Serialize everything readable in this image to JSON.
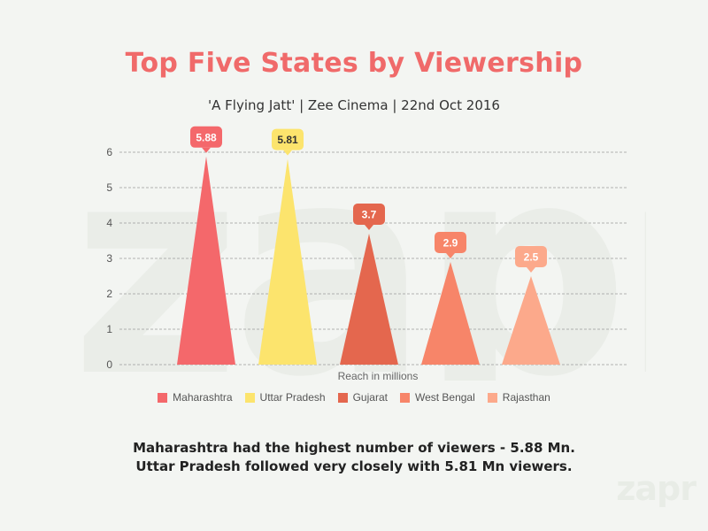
{
  "title": "Top Five States by Viewership",
  "subtitle": "'A Flying Jatt' | Zee Cinema |  22nd Oct 2016",
  "caption_line1": "Maharashtra had the highest number of viewers - 5.88 Mn.",
  "caption_line2": "Uttar Pradesh followed very closely with 5.81 Mn viewers.",
  "watermark": "zapr",
  "logo": "zapr",
  "chart_data": {
    "type": "bar",
    "categories": [
      "Maharashtra",
      "Uttar Pradesh",
      "Gujarat",
      "West Bengal",
      "Rajasthan"
    ],
    "values": [
      5.88,
      5.81,
      3.7,
      2.9,
      2.5
    ],
    "value_labels": [
      "5.88",
      "5.81",
      "3.7",
      "2.9",
      "2.5"
    ],
    "colors": [
      "#f4686b",
      "#fce46d",
      "#e4674e",
      "#f78569",
      "#fca98b"
    ],
    "label_text_colors": [
      "#ffffff",
      "#333333",
      "#ffffff",
      "#ffffff",
      "#ffffff"
    ],
    "title": "Top Five States by Viewership",
    "xlabel": "Reach in millions",
    "ylabel": "",
    "ylim": [
      0,
      6
    ],
    "yticks": [
      "0",
      "1",
      "2",
      "3",
      "4",
      "5",
      "6"
    ],
    "grid": true,
    "legend_position": "bottom"
  }
}
